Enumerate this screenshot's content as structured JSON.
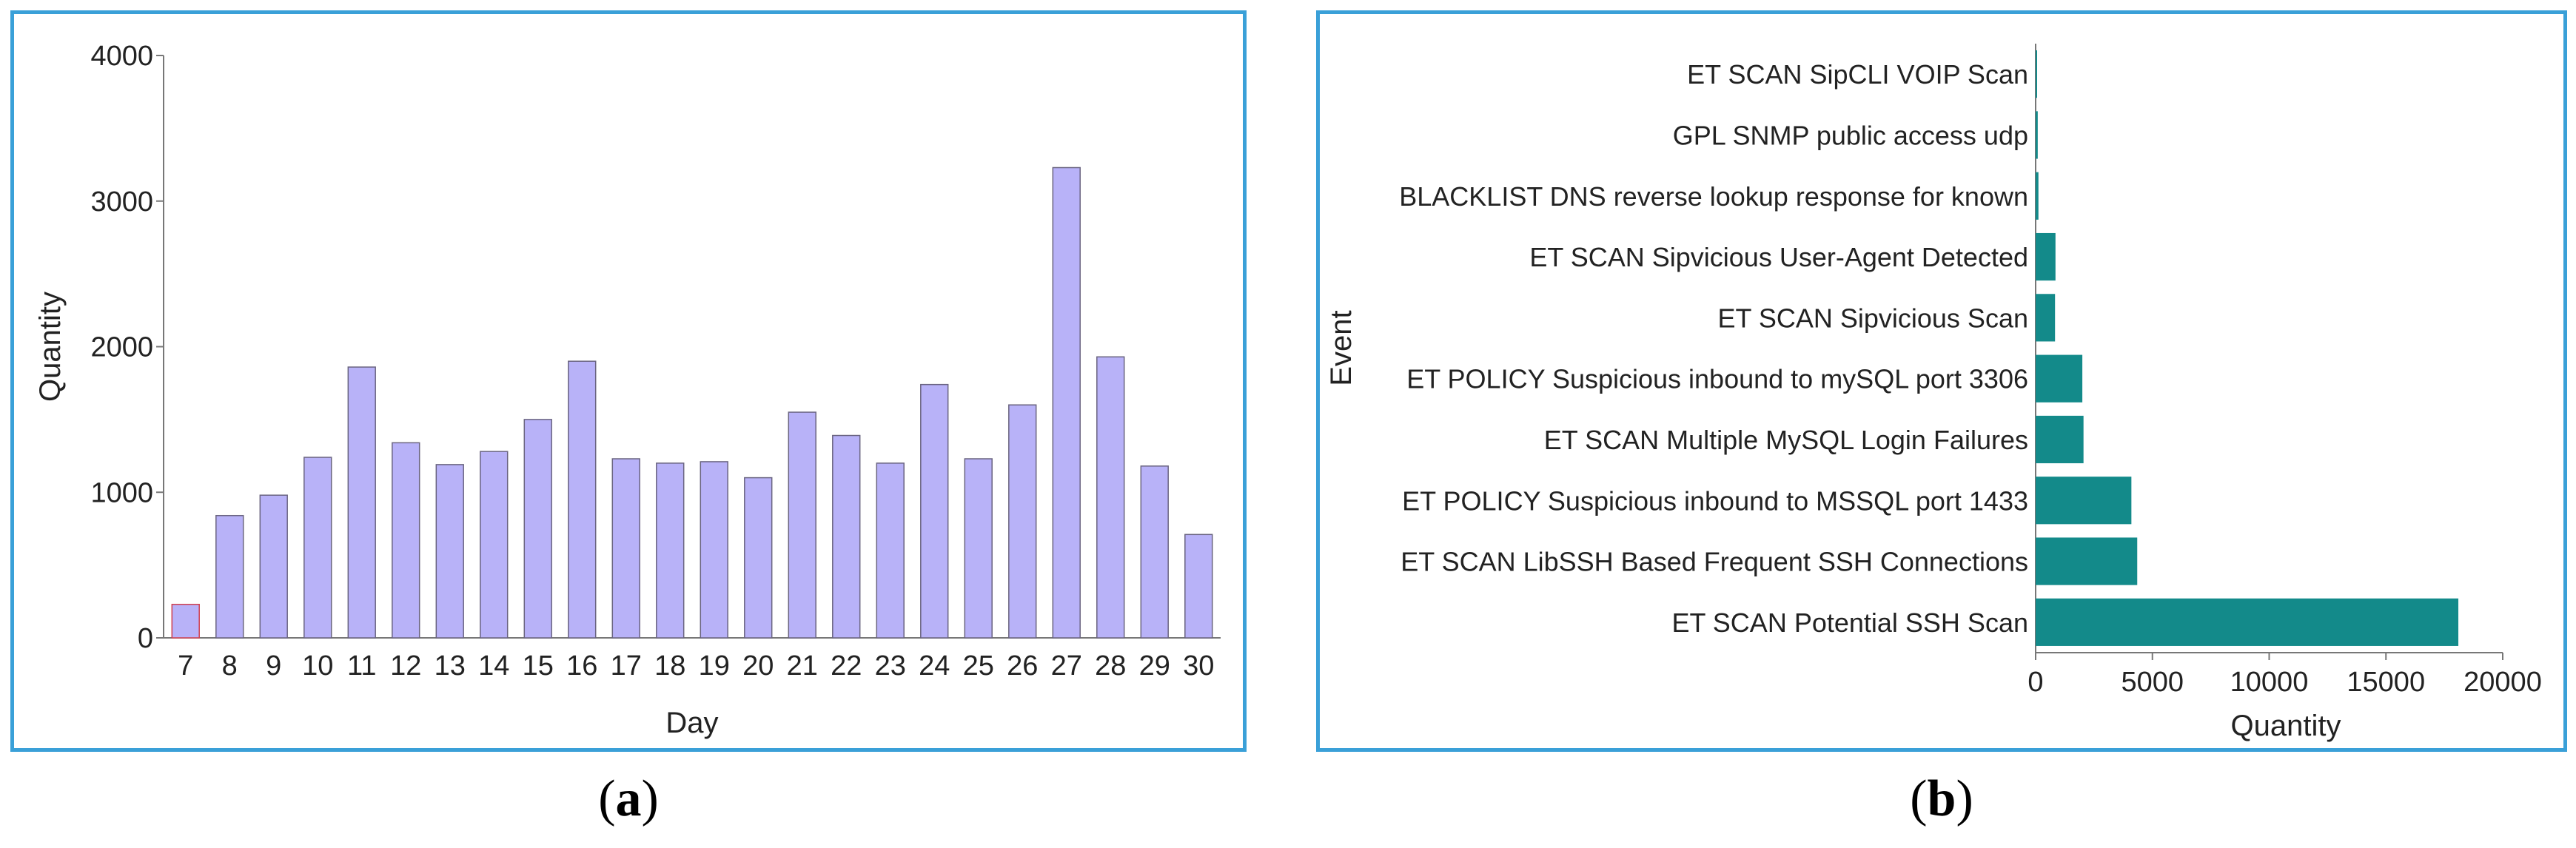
{
  "colors": {
    "panel_border": "#3aa0d8",
    "bar_a": "#b8b2f8",
    "bar_a_edge": "#6a6480",
    "bar_a_first_edge": "#d04050",
    "bar_b": "#138a8a",
    "axis": "#777777"
  },
  "captions": {
    "a": "a",
    "b": "b"
  },
  "chart_data": [
    {
      "type": "bar",
      "xlabel": "Day",
      "ylabel": "Quantity",
      "ylim": [
        0,
        4000
      ],
      "yticks": [
        0,
        1000,
        2000,
        3000,
        4000
      ],
      "grid": false,
      "categories": [
        "7",
        "8",
        "9",
        "10",
        "11",
        "12",
        "13",
        "14",
        "15",
        "16",
        "17",
        "18",
        "19",
        "20",
        "21",
        "22",
        "23",
        "24",
        "25",
        "26",
        "27",
        "28",
        "29",
        "30"
      ],
      "values": [
        230,
        840,
        980,
        1240,
        1860,
        1340,
        1190,
        1280,
        1500,
        1900,
        1230,
        1200,
        1210,
        1100,
        1550,
        1390,
        1200,
        1740,
        1230,
        1600,
        3230,
        1930,
        1180,
        710
      ]
    },
    {
      "type": "bar",
      "orientation": "horizontal",
      "xlabel": "Quantity",
      "ylabel": "Event",
      "xlim": [
        0,
        20000
      ],
      "xticks": [
        0,
        5000,
        10000,
        15000,
        20000
      ],
      "grid": false,
      "categories": [
        "ET SCAN SipCLI VOIP Scan",
        "GPL SNMP public access udp",
        "BLACKLIST DNS reverse lookup response for known",
        "ET SCAN Sipvicious User-Agent Detected",
        "ET SCAN Sipvicious Scan",
        "ET POLICY Suspicious inbound to mySQL port 3306",
        "ET SCAN Multiple MySQL Login Failures",
        "ET POLICY Suspicious inbound to MSSQL port 1433",
        "ET SCAN LibSSH Based Frequent SSH Connections",
        "ET SCAN Potential SSH Scan"
      ],
      "values": [
        60,
        90,
        120,
        850,
        830,
        2000,
        2050,
        4100,
        4350,
        18100
      ]
    }
  ]
}
